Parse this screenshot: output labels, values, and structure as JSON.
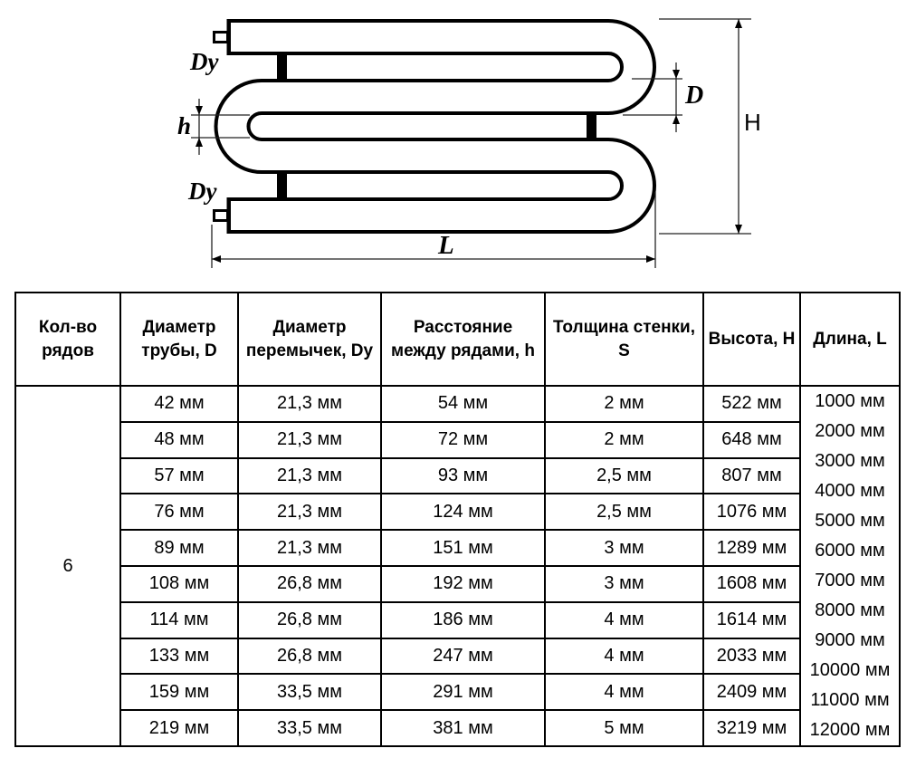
{
  "diagram": {
    "labels": {
      "dy_top": "Dy",
      "dy_bottom": "Dy",
      "h": "h",
      "d": "D",
      "height": "H",
      "length": "L"
    }
  },
  "table": {
    "headers": [
      "Кол-во рядов",
      "Диаметр трубы, D",
      "Диаметр перемычек, Dy",
      "Расстояние между рядами, h",
      "Толщина стенки, S",
      "Высота, Н",
      "Длина, L"
    ],
    "row_count_value": "6",
    "rows": [
      {
        "d": "42 мм",
        "dy": "21,3 мм",
        "h": "54 мм",
        "s": "2 мм",
        "height": "522 мм"
      },
      {
        "d": "48 мм",
        "dy": "21,3 мм",
        "h": "72 мм",
        "s": "2 мм",
        "height": "648 мм"
      },
      {
        "d": "57 мм",
        "dy": "21,3 мм",
        "h": "93 мм",
        "s": "2,5 мм",
        "height": "807 мм"
      },
      {
        "d": "76 мм",
        "dy": "21,3 мм",
        "h": "124 мм",
        "s": "2,5 мм",
        "height": "1076 мм"
      },
      {
        "d": "89 мм",
        "dy": "21,3 мм",
        "h": "151 мм",
        "s": "3 мм",
        "height": "1289 мм"
      },
      {
        "d": "108 мм",
        "dy": "26,8 мм",
        "h": "192 мм",
        "s": "3 мм",
        "height": "1608 мм"
      },
      {
        "d": "114 мм",
        "dy": "26,8 мм",
        "h": "186 мм",
        "s": "4 мм",
        "height": "1614 мм"
      },
      {
        "d": "133 мм",
        "dy": "26,8 мм",
        "h": "247 мм",
        "s": "4 мм",
        "height": "2033 мм"
      },
      {
        "d": "159 мм",
        "dy": "33,5 мм",
        "h": "291 мм",
        "s": "4 мм",
        "height": "2409 мм"
      },
      {
        "d": "219 мм",
        "dy": "33,5 мм",
        "h": "381 мм",
        "s": "5 мм",
        "height": "3219 мм"
      }
    ],
    "lengths": [
      "1000 мм",
      "2000 мм",
      "3000 мм",
      "4000 мм",
      "5000 мм",
      "6000 мм",
      "7000 мм",
      "8000 мм",
      "9000 мм",
      "10000 мм",
      "11000 мм",
      "12000 мм"
    ]
  }
}
